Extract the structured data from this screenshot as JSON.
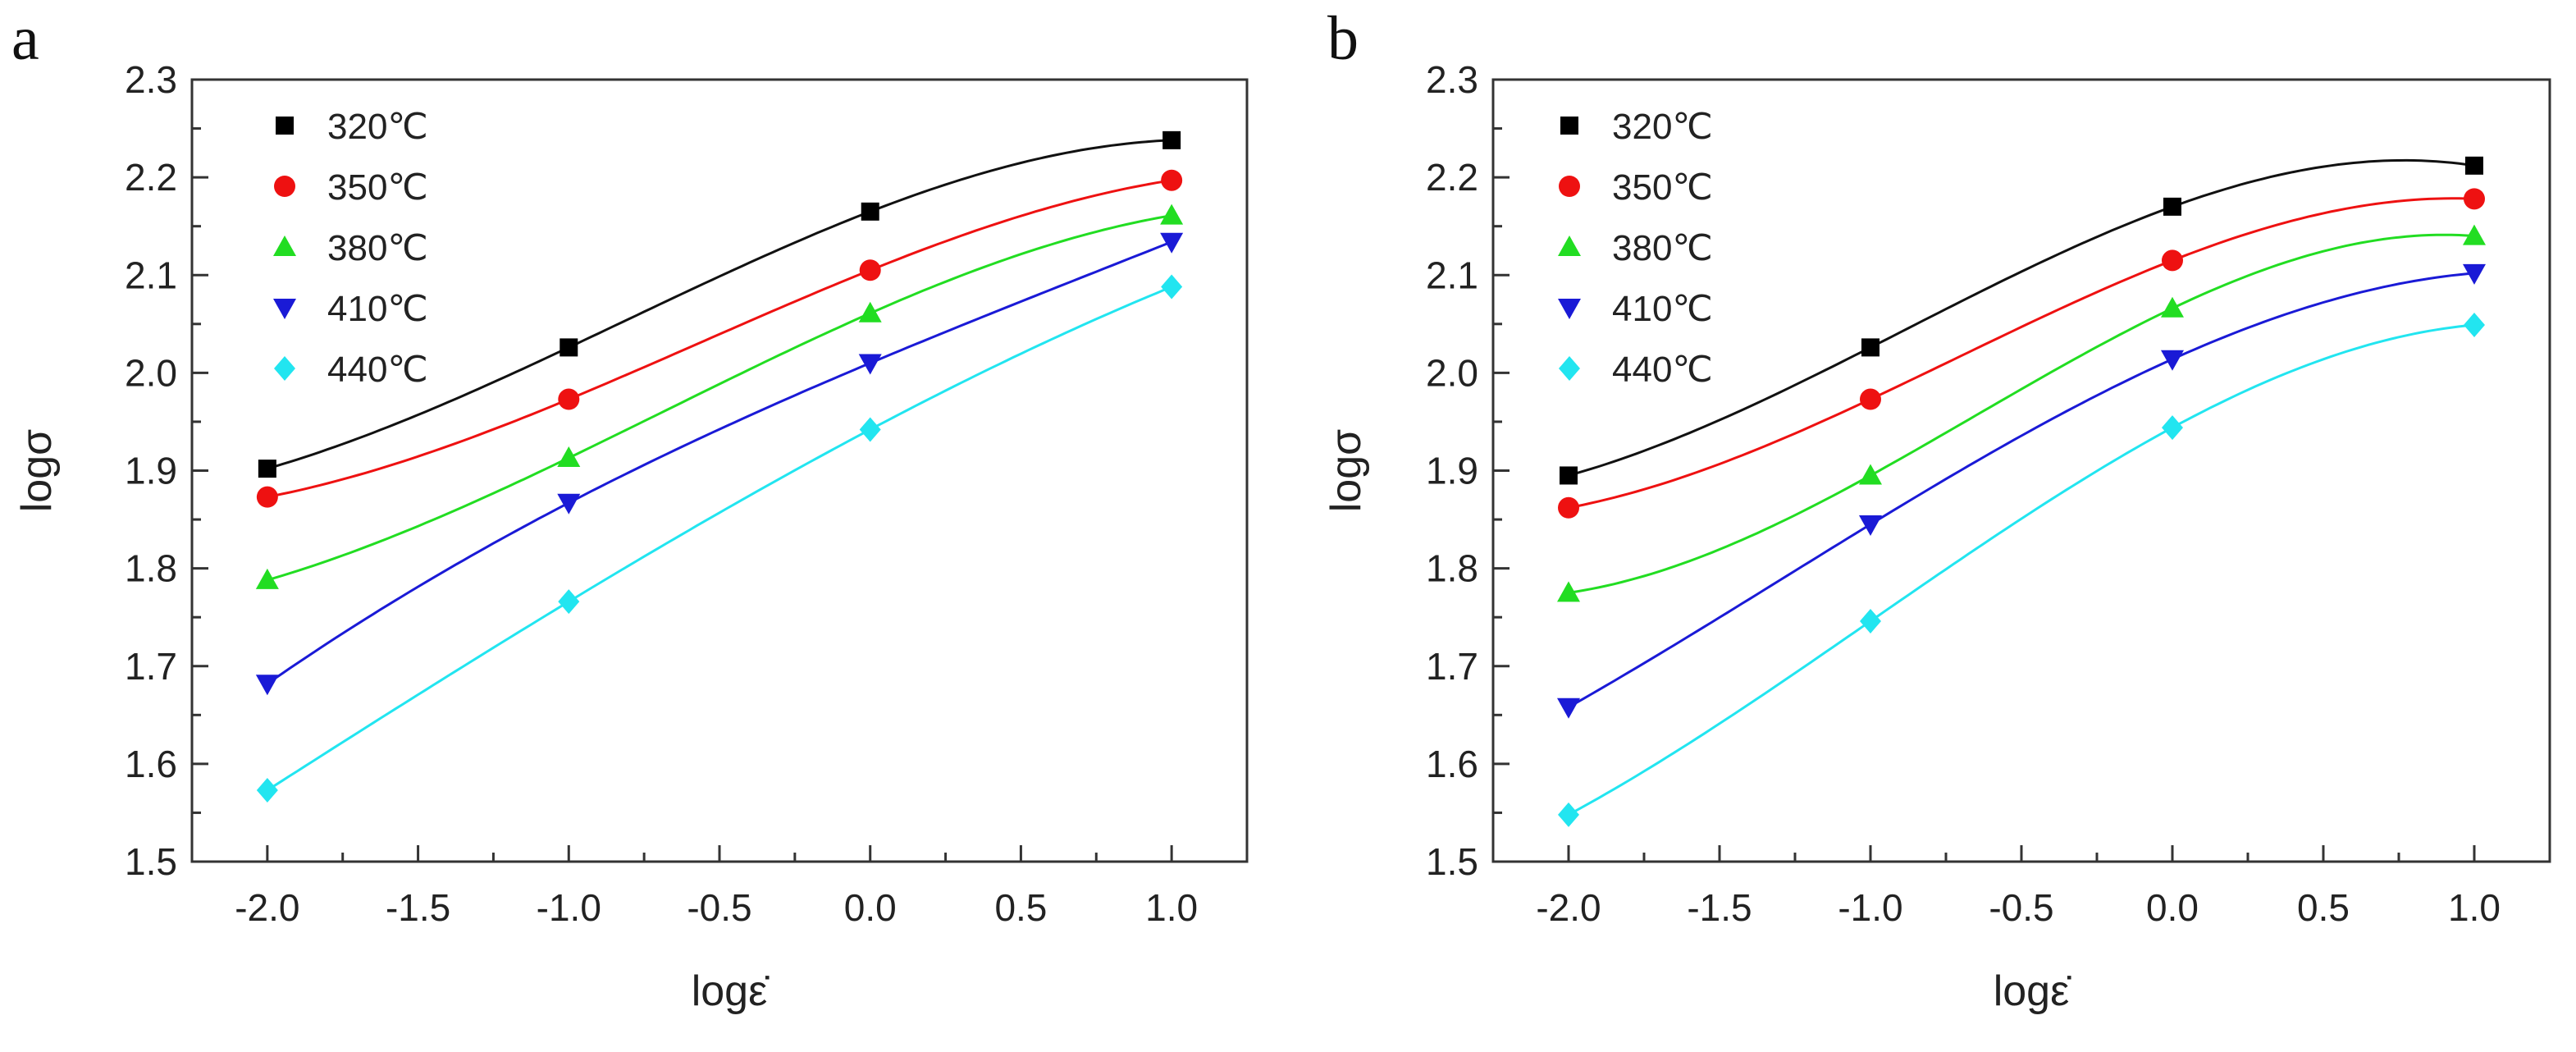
{
  "chart_data": [
    {
      "type": "line",
      "panel_label": "a",
      "xlabel": "logε̇",
      "ylabel": "logσ",
      "xlim": [
        -2.25,
        1.25
      ],
      "ylim": [
        1.5,
        2.3
      ],
      "xticks": [
        "-2.0",
        "-1.5",
        "-1.0",
        "-0.5",
        "0.0",
        "0.5",
        "1.0"
      ],
      "yticks": [
        "1.5",
        "1.6",
        "1.7",
        "1.8",
        "1.9",
        "2.0",
        "2.1",
        "2.2",
        "2.3"
      ],
      "grid": false,
      "legend_position": "top-left",
      "x": [
        -2,
        -1,
        0,
        1
      ],
      "series": [
        {
          "name": "320℃",
          "marker": "square",
          "color": "#000000",
          "values": [
            1.902,
            2.026,
            2.165,
            2.238
          ]
        },
        {
          "name": "350℃",
          "marker": "circle",
          "color": "#ee1111",
          "values": [
            1.873,
            1.973,
            2.105,
            2.197
          ]
        },
        {
          "name": "380℃",
          "marker": "triangle-up",
          "color": "#22dd22",
          "values": [
            1.788,
            1.913,
            2.061,
            2.161
          ]
        },
        {
          "name": "410℃",
          "marker": "triangle-down",
          "color": "#1a1ad6",
          "values": [
            1.682,
            1.867,
            2.01,
            2.134
          ]
        },
        {
          "name": "440℃",
          "marker": "diamond",
          "color": "#22e5f0",
          "values": [
            1.573,
            1.766,
            1.942,
            2.088
          ]
        }
      ]
    },
    {
      "type": "line",
      "panel_label": "b",
      "xlabel": "logε̇",
      "ylabel": "logσ",
      "xlim": [
        -2.25,
        1.25
      ],
      "ylim": [
        1.5,
        2.3
      ],
      "xticks": [
        "-2.0",
        "-1.5",
        "-1.0",
        "-0.5",
        "0.0",
        "0.5",
        "1.0"
      ],
      "yticks": [
        "1.5",
        "1.6",
        "1.7",
        "1.8",
        "1.9",
        "2.0",
        "2.1",
        "2.2",
        "2.3"
      ],
      "grid": false,
      "legend_position": "top-left",
      "x": [
        -2,
        -1,
        0,
        1
      ],
      "series": [
        {
          "name": "320℃",
          "marker": "square",
          "color": "#000000",
          "values": [
            1.895,
            2.026,
            2.17,
            2.212
          ]
        },
        {
          "name": "350℃",
          "marker": "circle",
          "color": "#ee1111",
          "values": [
            1.862,
            1.973,
            2.115,
            2.178
          ]
        },
        {
          "name": "380℃",
          "marker": "triangle-up",
          "color": "#22dd22",
          "values": [
            1.775,
            1.895,
            2.066,
            2.14
          ]
        },
        {
          "name": "410℃",
          "marker": "triangle-down",
          "color": "#1a1ad6",
          "values": [
            1.658,
            1.845,
            2.014,
            2.102
          ]
        },
        {
          "name": "440℃",
          "marker": "diamond",
          "color": "#22e5f0",
          "values": [
            1.548,
            1.746,
            1.944,
            2.049
          ]
        }
      ]
    }
  ]
}
